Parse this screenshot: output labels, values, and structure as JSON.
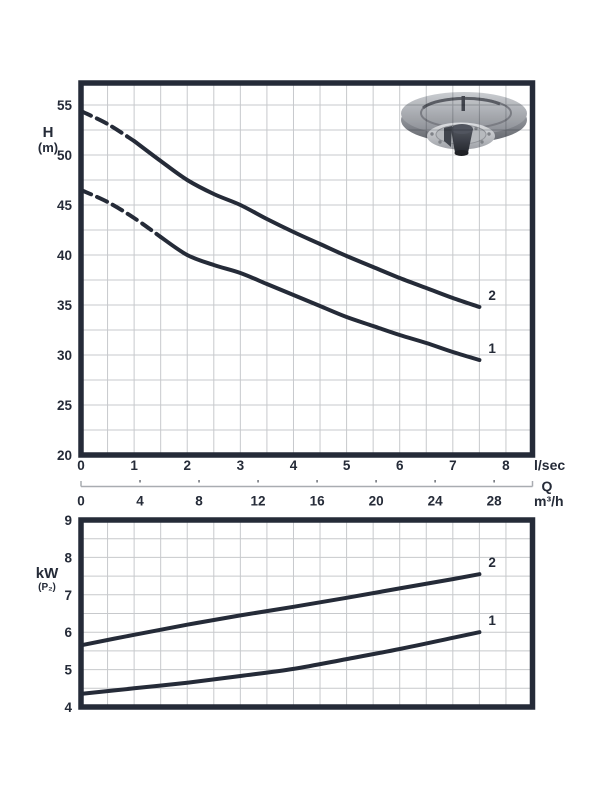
{
  "colors": {
    "ink": "#252b38",
    "grid": "#c7c9cc",
    "flow_axis_line": "#a9acb1",
    "background": "#ffffff"
  },
  "labels": {
    "h_axis": "H",
    "h_axis_unit": "(m)",
    "kw_axis": "kW",
    "kw_axis_unit": "(P₂)",
    "flow_unit_lsec": "l/sec",
    "flow_symbol": "Q",
    "flow_unit_m3h": "m³/h"
  },
  "chart_data": [
    {
      "id": "head",
      "type": "line",
      "title": "",
      "ylabel": "H (m)",
      "xlabel": "Q (l/sec / m³/h)",
      "xlim": [
        0,
        8.5
      ],
      "ylim": [
        20,
        57.2
      ],
      "x_ticks_lsec": [
        0,
        1,
        2,
        3,
        4,
        5,
        6,
        7,
        8
      ],
      "x_ticks_m3h": [
        0,
        4,
        8,
        12,
        16,
        20,
        24,
        28
      ],
      "y_ticks": [
        20,
        25,
        30,
        35,
        40,
        45,
        50,
        55
      ],
      "grid_step": {
        "x": 0.5,
        "y": 2.5
      },
      "legend_position": "curve-end",
      "series": [
        {
          "name": "1",
          "dash_until": 1.5,
          "points": [
            [
              0,
              46.5
            ],
            [
              0.5,
              45.3
            ],
            [
              1,
              43.7
            ],
            [
              1.5,
              41.8
            ],
            [
              2,
              40.0
            ],
            [
              2.5,
              39.0
            ],
            [
              3,
              38.2
            ],
            [
              3.5,
              37.1
            ],
            [
              4,
              36.0
            ],
            [
              4.5,
              34.9
            ],
            [
              5,
              33.8
            ],
            [
              5.5,
              32.9
            ],
            [
              6,
              32.0
            ],
            [
              6.5,
              31.2
            ],
            [
              7,
              30.3
            ],
            [
              7.5,
              29.5
            ]
          ]
        },
        {
          "name": "2",
          "dash_until": 1.0,
          "points": [
            [
              0,
              54.4
            ],
            [
              0.5,
              53.1
            ],
            [
              1,
              51.4
            ],
            [
              1.5,
              49.4
            ],
            [
              2,
              47.5
            ],
            [
              2.5,
              46.1
            ],
            [
              3,
              45.0
            ],
            [
              3.5,
              43.6
            ],
            [
              4,
              42.3
            ],
            [
              4.5,
              41.1
            ],
            [
              5,
              39.9
            ],
            [
              5.5,
              38.8
            ],
            [
              6,
              37.7
            ],
            [
              6.5,
              36.7
            ],
            [
              7,
              35.7
            ],
            [
              7.5,
              34.8
            ]
          ]
        }
      ]
    },
    {
      "id": "power",
      "type": "line",
      "title": "",
      "ylabel": "kW (P₂)",
      "xlabel": "Q (l/sec / m³/h)",
      "xlim": [
        0,
        8.5
      ],
      "ylim": [
        4,
        9
      ],
      "y_ticks": [
        4,
        5,
        6,
        7,
        8,
        9
      ],
      "grid_step": {
        "x": 0.5,
        "y": 0.5
      },
      "legend_position": "curve-end",
      "series": [
        {
          "name": "1",
          "points": [
            [
              0,
              4.35
            ],
            [
              1,
              4.5
            ],
            [
              2,
              4.65
            ],
            [
              3,
              4.83
            ],
            [
              4,
              5.02
            ],
            [
              5,
              5.28
            ],
            [
              6,
              5.55
            ],
            [
              7,
              5.85
            ],
            [
              7.5,
              6.0
            ]
          ]
        },
        {
          "name": "2",
          "points": [
            [
              0,
              5.65
            ],
            [
              1,
              5.93
            ],
            [
              2,
              6.2
            ],
            [
              3,
              6.45
            ],
            [
              4,
              6.68
            ],
            [
              5,
              6.92
            ],
            [
              6,
              7.17
            ],
            [
              7,
              7.42
            ],
            [
              7.5,
              7.55
            ]
          ]
        }
      ]
    }
  ]
}
